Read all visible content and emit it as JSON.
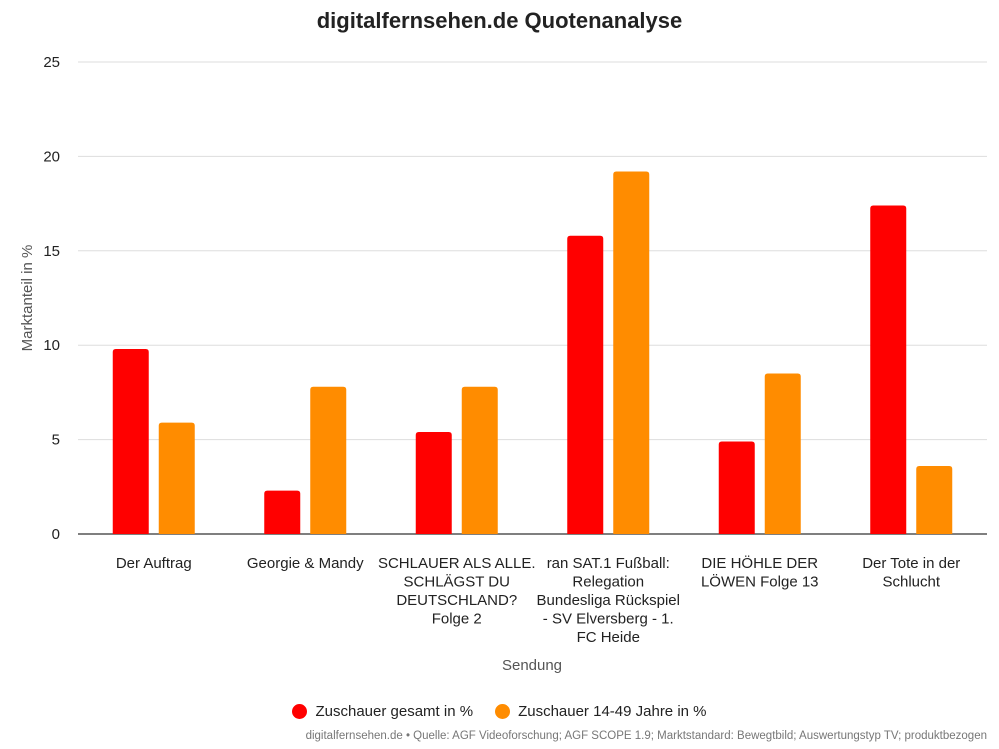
{
  "chart_data": {
    "type": "bar",
    "title": "digitalfernsehen.de Quotenanalyse",
    "xlabel": "Sendung",
    "ylabel": "Marktanteil in %",
    "ylim": [
      0,
      25
    ],
    "yticks": [
      0,
      5,
      10,
      15,
      20,
      25
    ],
    "grid": true,
    "legend_position": "bottom",
    "categories": [
      [
        "Der Auftrag"
      ],
      [
        "Georgie & Mandy"
      ],
      [
        "SCHLAUER ALS ALLE.",
        "SCHLÄGST DU",
        "DEUTSCHLAND?",
        "Folge 2"
      ],
      [
        "ran SAT.1 Fußball:",
        "Relegation",
        "Bundesliga Rückspiel",
        "- SV Elversberg - 1.",
        "FC Heide"
      ],
      [
        "DIE HÖHLE DER",
        "LÖWEN Folge 13"
      ],
      [
        "Der Tote in der",
        "Schlucht"
      ]
    ],
    "series": [
      {
        "name": "Zuschauer gesamt in %",
        "color": "#ff0000",
        "values": [
          9.8,
          2.3,
          5.4,
          15.8,
          4.9,
          17.4
        ]
      },
      {
        "name": "Zuschauer 14-49 Jahre in %",
        "color": "#ff8c00",
        "values": [
          5.9,
          7.8,
          7.8,
          19.2,
          8.5,
          3.6
        ]
      }
    ]
  },
  "source_note": "digitalfernsehen.de • Quelle: AGF Videoforschung; AGF SCOPE 1.9; Marktstandard: Bewegtbild; Auswertungstyp TV; produktbezogen"
}
